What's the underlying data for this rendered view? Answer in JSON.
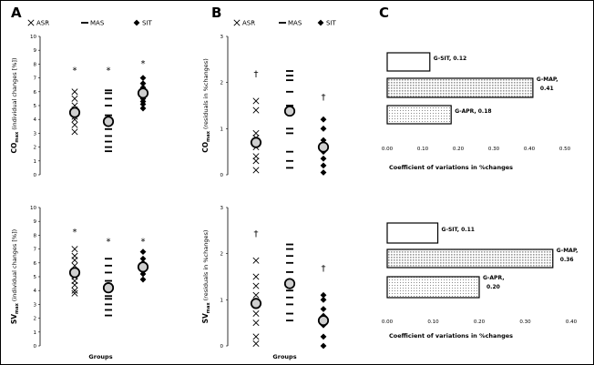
{
  "panel_letters": [
    "A",
    "B",
    "C"
  ],
  "legend_items": [
    {
      "name": "ASR",
      "marker": "x-mark-icon"
    },
    {
      "name": "MAS",
      "marker": "dash-mark-icon"
    },
    {
      "name": "SIT",
      "marker": "diamond-mark-icon"
    }
  ],
  "colors": {
    "stroke": "#000000",
    "dot_fill": "#cfcfcf",
    "background": "#ffffff"
  },
  "chart_data": [
    {
      "id": "A-top",
      "type": "scatter",
      "ylabel_main": "CO",
      "ylabel_sub": "max",
      "ylabel_rest": "(individual changes [%])",
      "xlabel": "",
      "ylim": [
        0,
        10
      ],
      "yticks": [
        "0",
        "1",
        "2",
        "3",
        "4",
        "5",
        "6",
        "7",
        "8",
        "9",
        "10"
      ],
      "groups": [
        {
          "name": "ASR",
          "marker": "x",
          "values": [
            3.1,
            3.6,
            4.0,
            4.2,
            4.5,
            4.7,
            5.0,
            5.5,
            6.0
          ],
          "mean": 4.5,
          "annotation": "*",
          "annotation_y": 7.6
        },
        {
          "name": "MAS",
          "marker": "dash",
          "values": [
            1.7,
            2.0,
            2.4,
            2.8,
            3.3,
            3.7,
            4.3,
            5.0,
            5.5,
            5.9,
            6.1
          ],
          "mean": 3.85,
          "annotation": "*",
          "annotation_y": 7.6
        },
        {
          "name": "SIT",
          "marker": "diamond",
          "values": [
            4.8,
            5.1,
            5.3,
            5.5,
            5.7,
            5.8,
            6.0,
            6.2,
            6.3,
            6.6,
            7.0
          ],
          "mean": 5.9,
          "annotation": "*",
          "annotation_y": 8.1
        }
      ]
    },
    {
      "id": "B-top",
      "type": "scatter",
      "ylabel_main": "CO",
      "ylabel_sub": "max",
      "ylabel_rest": "(residuals in %changes)",
      "xlabel": "",
      "ylim": [
        0,
        3
      ],
      "yticks": [
        "0",
        "1",
        "2",
        "3"
      ],
      "groups": [
        {
          "name": "ASR",
          "marker": "x",
          "values": [
            0.1,
            0.3,
            0.4,
            0.6,
            0.8,
            0.9,
            1.4,
            1.6
          ],
          "mean": 0.7,
          "annotation": "†",
          "annotation_y": 2.2
        },
        {
          "name": "MAS",
          "marker": "dash",
          "values": [
            0.15,
            0.3,
            0.5,
            0.9,
            1.0,
            1.5,
            1.8,
            2.05,
            2.15,
            2.25
          ],
          "mean": 1.38,
          "annotation": "",
          "annotation_y": 0
        },
        {
          "name": "SIT",
          "marker": "diamond",
          "values": [
            0.05,
            0.2,
            0.35,
            0.5,
            0.65,
            0.75,
            1.0,
            1.2
          ],
          "mean": 0.6,
          "annotation": "†",
          "annotation_y": 1.7
        }
      ]
    },
    {
      "id": "A-bottom",
      "type": "scatter",
      "ylabel_main": "SV",
      "ylabel_sub": "max",
      "ylabel_rest": "(individual changes [%])",
      "xlabel": "Groups",
      "ylim": [
        0,
        10
      ],
      "yticks": [
        "0",
        "1",
        "2",
        "3",
        "4",
        "5",
        "6",
        "7",
        "8",
        "9",
        "10"
      ],
      "groups": [
        {
          "name": "ASR",
          "marker": "x",
          "values": [
            3.8,
            4.0,
            4.4,
            4.7,
            5.0,
            5.4,
            5.8,
            6.2,
            6.5,
            7.0
          ],
          "mean": 5.3,
          "annotation": "*",
          "annotation_y": 8.3
        },
        {
          "name": "MAS",
          "marker": "dash",
          "values": [
            2.2,
            2.6,
            3.0,
            3.4,
            3.6,
            4.1,
            4.7,
            5.3,
            5.8,
            6.3
          ],
          "mean": 4.2,
          "annotation": "*",
          "annotation_y": 7.6
        },
        {
          "name": "SIT",
          "marker": "diamond",
          "values": [
            4.8,
            5.2,
            5.4,
            5.6,
            5.9,
            6.0,
            6.3,
            6.8
          ],
          "mean": 5.7,
          "annotation": "*",
          "annotation_y": 7.6
        }
      ]
    },
    {
      "id": "B-bottom",
      "type": "scatter",
      "ylabel_main": "SV",
      "ylabel_sub": "max",
      "ylabel_rest": "(residuals in %changes)",
      "xlabel": "Groups",
      "ylim": [
        0,
        3
      ],
      "yticks": [
        "0",
        "1",
        "2",
        "3"
      ],
      "groups": [
        {
          "name": "ASR",
          "marker": "x",
          "values": [
            0.05,
            0.2,
            0.5,
            0.7,
            0.9,
            1.1,
            1.3,
            1.5,
            1.85
          ],
          "mean": 0.92,
          "annotation": "†",
          "annotation_y": 2.45
        },
        {
          "name": "MAS",
          "marker": "dash",
          "values": [
            0.55,
            0.7,
            0.9,
            1.05,
            1.2,
            1.4,
            1.6,
            1.8,
            1.95,
            2.1,
            2.2
          ],
          "mean": 1.35,
          "annotation": "",
          "annotation_y": 0
        },
        {
          "name": "SIT",
          "marker": "diamond",
          "values": [
            0.0,
            0.2,
            0.45,
            0.55,
            0.65,
            0.8,
            1.0,
            1.1
          ],
          "mean": 0.55,
          "annotation": "†",
          "annotation_y": 1.7
        }
      ]
    },
    {
      "id": "C-top",
      "type": "bar",
      "orientation": "horizontal",
      "xlabel": "Coefficient of variations in %changes",
      "xlim": [
        0,
        0.5
      ],
      "xticks": [
        "0.00",
        "0.10",
        "0.20",
        "0.30",
        "0.40",
        "0.50"
      ],
      "bars": [
        {
          "label": "G-SIT, 0.12",
          "value": 0.12,
          "pattern": "white",
          "label_lines": [
            "G-SIT, 0.12"
          ]
        },
        {
          "label": "G-MAP, 0.41",
          "value": 0.41,
          "pattern": "dotted-dense",
          "label_lines": [
            "G-MAP,",
            "0.41"
          ]
        },
        {
          "label": "G-APR, 0.18",
          "value": 0.18,
          "pattern": "dotted-sparse",
          "label_lines": [
            "G-APR, 0.18"
          ]
        }
      ]
    },
    {
      "id": "C-bottom",
      "type": "bar",
      "orientation": "horizontal",
      "xlabel": "Coefficient of variations in %changes",
      "xlim": [
        0,
        0.4
      ],
      "xticks": [
        "0.00",
        "0.10",
        "0.20",
        "0.30",
        "0.40"
      ],
      "bars": [
        {
          "label": "G-SIT, 0.11",
          "value": 0.11,
          "pattern": "white",
          "label_lines": [
            "G-SIT, 0.11"
          ]
        },
        {
          "label": "G-MAP, 0.36",
          "value": 0.36,
          "pattern": "dotted-dense",
          "label_lines": [
            "G-MAP,",
            "0.36"
          ]
        },
        {
          "label": "G-APR, 0.20",
          "value": 0.2,
          "pattern": "dotted-sparse",
          "label_lines": [
            "G-APR,",
            "0.20"
          ]
        }
      ]
    }
  ]
}
